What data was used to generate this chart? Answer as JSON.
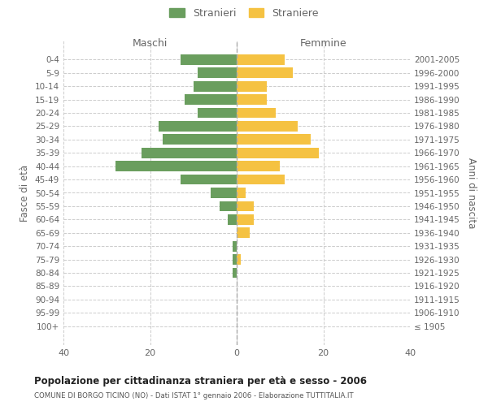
{
  "age_groups": [
    "0-4",
    "5-9",
    "10-14",
    "15-19",
    "20-24",
    "25-29",
    "30-34",
    "35-39",
    "40-44",
    "45-49",
    "50-54",
    "55-59",
    "60-64",
    "65-69",
    "70-74",
    "75-79",
    "80-84",
    "85-89",
    "90-94",
    "95-99",
    "100+"
  ],
  "birth_years": [
    "2001-2005",
    "1996-2000",
    "1991-1995",
    "1986-1990",
    "1981-1985",
    "1976-1980",
    "1971-1975",
    "1966-1970",
    "1961-1965",
    "1956-1960",
    "1951-1955",
    "1946-1950",
    "1941-1945",
    "1936-1940",
    "1931-1935",
    "1926-1930",
    "1921-1925",
    "1916-1920",
    "1911-1915",
    "1906-1910",
    "≤ 1905"
  ],
  "maschi": [
    13,
    9,
    10,
    12,
    9,
    18,
    17,
    22,
    28,
    13,
    6,
    4,
    2,
    0,
    1,
    1,
    1,
    0,
    0,
    0,
    0
  ],
  "femmine": [
    11,
    13,
    7,
    7,
    9,
    14,
    17,
    19,
    10,
    11,
    2,
    4,
    4,
    3,
    0,
    1,
    0,
    0,
    0,
    0,
    0
  ],
  "maschi_color": "#6a9e5e",
  "femmine_color": "#f5c242",
  "title": "Popolazione per cittadinanza straniera per età e sesso - 2006",
  "subtitle": "COMUNE DI BORGO TICINO (NO) - Dati ISTAT 1° gennaio 2006 - Elaborazione TUTTITALIA.IT",
  "xlabel_left": "Maschi",
  "xlabel_right": "Femmine",
  "ylabel_left": "Fasce di età",
  "ylabel_right": "Anni di nascita",
  "legend_stranieri": "Stranieri",
  "legend_straniere": "Straniere",
  "xlim": 40,
  "background_color": "#ffffff",
  "grid_color": "#cccccc",
  "tick_color": "#999999",
  "label_color": "#666666"
}
